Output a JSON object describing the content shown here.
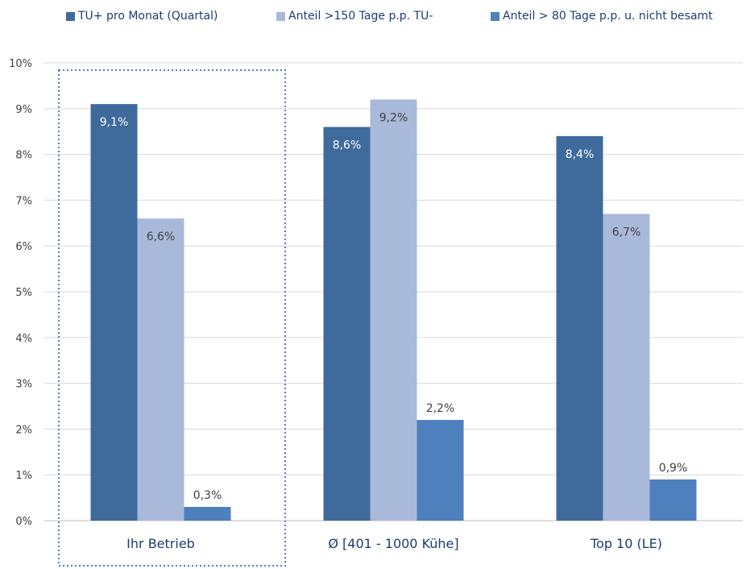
{
  "chart_data": {
    "type": "bar",
    "categories": [
      "Ihr Betrieb",
      "Ø [401 - 1000 Kühe]",
      "Top 10 (LE)"
    ],
    "series": [
      {
        "name": "TU+ pro Monat (Quartal)",
        "values": [
          9.1,
          8.6,
          8.4
        ],
        "labels": [
          "9,1%",
          "8,6%",
          "8,4%"
        ],
        "color": "#3f6a9c"
      },
      {
        "name": "Anteil >150 Tage p.p. TU-",
        "values": [
          6.6,
          9.2,
          6.7
        ],
        "labels": [
          "6,6%",
          "9,2%",
          "6,7%"
        ],
        "color": "#a9b9d9"
      },
      {
        "name": "Anteil > 80 Tage p.p. u. nicht besamt",
        "values": [
          0.3,
          2.2,
          0.9
        ],
        "labels": [
          "0,3%",
          "2,2%",
          "0,9%"
        ],
        "color": "#4e80bd"
      }
    ],
    "y_ticks": [
      "0%",
      "1%",
      "2%",
      "3%",
      "4%",
      "5%",
      "6%",
      "7%",
      "8%",
      "9%",
      "10%"
    ],
    "ylim": [
      0,
      10
    ],
    "grid": true,
    "legend_position": "top",
    "highlighted_category": "Ihr Betrieb",
    "colors": {
      "axis_text": "#404040",
      "category_text": "#1f3b73",
      "grid": "#d9d9d9",
      "highlight_border": "#4e80bd"
    }
  }
}
